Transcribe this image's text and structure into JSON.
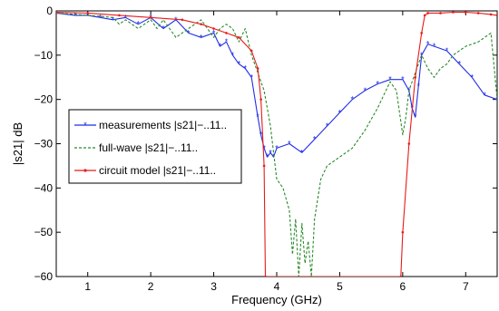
{
  "chart_data": {
    "type": "line",
    "title": "",
    "xlabel": "Frequency (GHz)",
    "ylabel": "|s21| dB",
    "xlim": [
      0.5,
      7.5
    ],
    "ylim": [
      -60,
      0
    ],
    "xticks": [
      1,
      2,
      3,
      4,
      5,
      6,
      7
    ],
    "yticks": [
      0,
      -10,
      -20,
      -30,
      -40,
      -50,
      -60
    ],
    "legend_position": "center-left",
    "grid": false,
    "series": [
      {
        "name": "measurements |s21|−..11..",
        "color": "#1f2ee6",
        "style": "solid-star",
        "x": [
          0.5,
          0.8,
          1.0,
          1.2,
          1.4,
          1.6,
          1.8,
          2.0,
          2.2,
          2.4,
          2.6,
          2.8,
          3.0,
          3.1,
          3.2,
          3.3,
          3.4,
          3.5,
          3.6,
          3.7,
          3.75,
          3.8,
          3.85,
          3.9,
          3.95,
          4.0,
          4.2,
          4.4,
          4.6,
          4.8,
          5.0,
          5.2,
          5.4,
          5.6,
          5.8,
          6.0,
          6.1,
          6.15,
          6.2,
          6.25,
          6.3,
          6.4,
          6.5,
          6.7,
          6.9,
          7.1,
          7.3,
          7.5
        ],
        "y": [
          -0.5,
          -1,
          -1,
          -1.5,
          -2,
          -1.5,
          -3,
          -1.5,
          -4,
          -2,
          -5,
          -6,
          -5,
          -8,
          -7,
          -10,
          -12,
          -13,
          -15,
          -24,
          -28,
          -31,
          -33,
          -32,
          -33,
          -31,
          -30,
          -32,
          -29,
          -26,
          -23,
          -20,
          -18,
          -16.5,
          -15.5,
          -15.5,
          -18,
          -22,
          -24,
          -17,
          -10,
          -7.5,
          -8,
          -9,
          -12,
          -15,
          -19,
          -20
        ]
      },
      {
        "name": "full-wave |s21|−..11..",
        "color": "#2a8a2a",
        "style": "dashed",
        "x": [
          0.5,
          0.8,
          1.0,
          1.2,
          1.4,
          1.5,
          1.6,
          1.8,
          2.0,
          2.1,
          2.2,
          2.4,
          2.6,
          2.8,
          3.0,
          3.1,
          3.2,
          3.3,
          3.4,
          3.5,
          3.6,
          3.7,
          3.8,
          3.85,
          3.9,
          4.0,
          4.1,
          4.2,
          4.25,
          4.3,
          4.35,
          4.4,
          4.45,
          4.5,
          4.55,
          4.6,
          4.7,
          4.8,
          5.0,
          5.2,
          5.4,
          5.6,
          5.8,
          5.9,
          6.0,
          6.05,
          6.1,
          6.2,
          6.3,
          6.4,
          6.5,
          6.6,
          6.7,
          6.8,
          7.0,
          7.2,
          7.4,
          7.5
        ],
        "y": [
          -0.5,
          -0.8,
          -1,
          -1.2,
          -1.5,
          -3,
          -2,
          -4,
          -2,
          -4,
          -2,
          -6,
          -4,
          -2,
          -6,
          -4,
          -3,
          -4,
          -7,
          -4,
          -10,
          -14,
          -18,
          -22,
          -26,
          -38,
          -40,
          -45,
          -55,
          -47,
          -60,
          -48,
          -57,
          -52,
          -60,
          -47,
          -38,
          -35,
          -33,
          -31,
          -27,
          -22,
          -16,
          -18,
          -28,
          -24,
          -18,
          -14,
          -10,
          -13,
          -15,
          -13,
          -12,
          -10,
          -8,
          -7,
          -5,
          -20
        ]
      },
      {
        "name": "circuit model |s21|−..11..",
        "color": "#e81a1a",
        "style": "solid-dot",
        "x": [
          0.5,
          1.0,
          1.5,
          2.0,
          2.5,
          2.8,
          3.0,
          3.2,
          3.4,
          3.6,
          3.7,
          3.75,
          3.8,
          3.82,
          5.97,
          6.0,
          6.1,
          6.2,
          6.3,
          6.35,
          6.4,
          6.6,
          6.8,
          7.0,
          7.2,
          7.4,
          7.5
        ],
        "y": [
          -0.3,
          -0.5,
          -1,
          -1.5,
          -2,
          -3,
          -4,
          -5,
          -6,
          -9,
          -13,
          -20,
          -35,
          -60,
          -60,
          -50,
          -30,
          -15,
          -5,
          -1,
          -0.5,
          -0.5,
          -0.3,
          -0.3,
          -0.5,
          -0.8,
          -1
        ]
      }
    ]
  }
}
